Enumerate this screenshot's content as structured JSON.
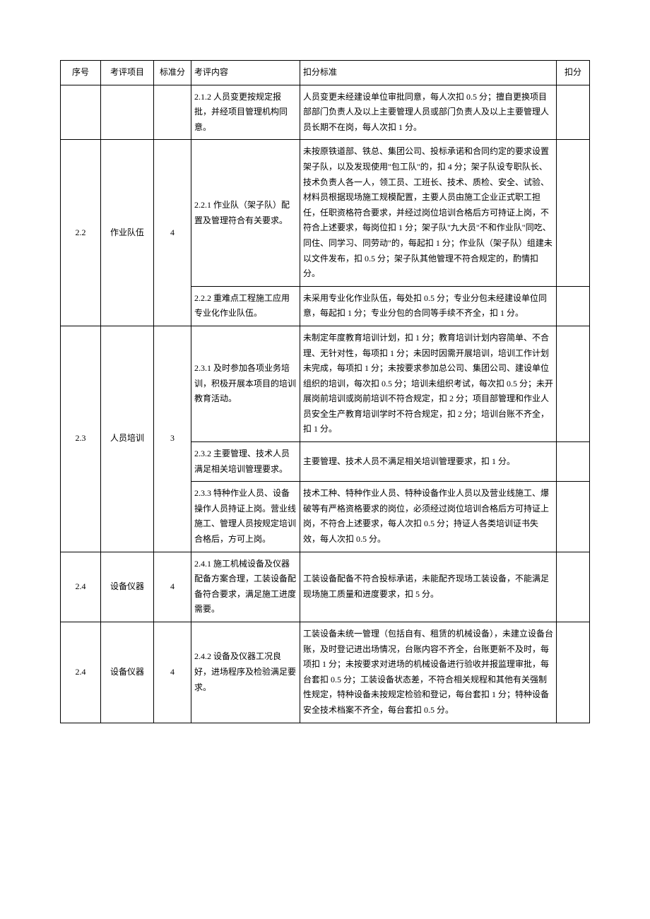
{
  "headers": {
    "seq": "序号",
    "item": "考评项目",
    "score": "标准分",
    "content": "考评内容",
    "criteria": "扣分标准",
    "deduct": "扣分"
  },
  "rows": [
    {
      "seq": "",
      "item": "",
      "score": "",
      "content": "2.1.2 人员变更按规定报批，并经项目管理机构同意。",
      "criteria": "人员变更未经建设单位审批同意，每人次扣 0.5 分；擅自更换项目部部门负责人及以上主要管理人员或部门负责人及以上主要管理人员长期不在岗，每人次扣 1 分。",
      "deduct": ""
    },
    {
      "seq": "2.2",
      "item": "作业队伍",
      "score": "4",
      "rowspan": 2,
      "sub": [
        {
          "content": "2.2.1 作业队（架子队）配置及管理符合有关要求。",
          "criteria": "未按原铁道部、铁总、集团公司、投标承诺和合同约定的要求设置架子队，以及发现使用\"包工队\"的，扣 4 分；架子队设专职队长、技术负责人各一人，领工员、工班长、技术、质检、安全、试验、材料员根据现场施工规模配置，主要人员由施工企业正式职工担任，任职资格符合要求，并经过岗位培训合格后方可持证上岗，不符合上述要求，每岗位扣 1 分；架子队\"九大员\"不和作业队\"同吃、同住、同学习、同劳动\"的，每起扣 1 分；作业队（架子队）组建未以文件发布，扣 0.5 分；架子队其他管理不符合规定的，酌情扣分。",
          "deduct": ""
        },
        {
          "content": "2.2.2 重难点工程施工应用专业化作业队伍。",
          "criteria": "未采用专业化作业队伍，每处扣 0.5 分；专业分包未经建设单位同意，每起扣 1 分；专业分包的合同等手续不齐全，扣 1 分。",
          "deduct": ""
        }
      ]
    },
    {
      "seq": "2.3",
      "item": "人员培训",
      "score": "3",
      "rowspan": 3,
      "sub": [
        {
          "content": "2.3.1 及时参加各项业务培训，积极开展本项目的培训教育活动。",
          "criteria": "未制定年度教育培训计划，扣 1 分；教育培训计划内容简单、不合理、无针对性，每项扣 1 分；未因时因需开展培训，培训工作计划未完成，每项扣 1 分；未按要求参加总公司、集团公司、建设单位组织的培训，每次扣 0.5 分；培训未组织考试，每次扣 0.5 分；未开展岗前培训或岗前培训不符合规定，扣 2 分；项目部管理和作业人员安全生产教育培训学时不符合规定，扣 2 分；培训台账不齐全，扣 1 分。",
          "deduct": ""
        },
        {
          "content": "2.3.2 主要管理、技术人员满足相关培训管理要求。",
          "criteria": "主要管理、技术人员不满足相关培训管理要求，扣 1 分。",
          "deduct": ""
        },
        {
          "content": "2.3.3 特种作业人员、设备操作人员持证上岗。营业线施工、管理人员按规定培训合格后，方可上岗。",
          "criteria": "技术工种、特种作业人员、特种设备作业人员以及营业线施工、爆破等有严格资格要求的岗位，必须经过岗位培训合格后方可持证上岗，不符合上述要求，每人次扣 0.5 分；持证人各类培训证书失效，每人次扣 0.5 分。",
          "deduct": ""
        }
      ]
    },
    {
      "seq": "2.4",
      "item": "设备仪器",
      "score": "4",
      "content": "2.4.1 施工机械设备及仪器配备方案合理，工装设备配备符合要求，满足施工进度需要。",
      "criteria": "工装设备配备不符合投标承诺，未能配齐现场工装设备，不能满足现场施工质量和进度要求，扣 5 分。",
      "deduct": ""
    },
    {
      "seq": "2.4",
      "item": "设备仪器",
      "score": "4",
      "content": "2.4.2 设备及仪器工况良好，进场程序及检验满足要求。",
      "criteria": "工装设备未统一管理（包括自有、租赁的机械设备），未建立设备台账，及时登记进出场情况，台账内容不齐全，台账更新不及时，每项扣 1 分；未按要求对进场的机械设备进行验收并报监理审批，每台套扣 0.5 分；工装设备状态差，不符合相关规程和其他有关强制性规定，特种设备未按规定检验和登记，每台套扣 1 分；特种设备安全技术档案不齐全，每台套扣 0.5 分。",
      "deduct": ""
    }
  ]
}
